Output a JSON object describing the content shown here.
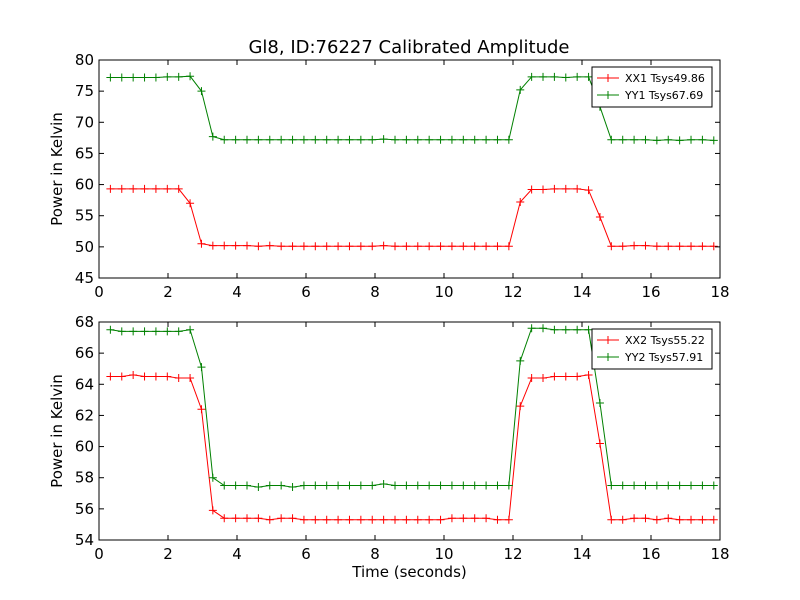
{
  "figure_title": "Gl8, ID:76227 Calibrated Amplitude",
  "chart_data": [
    {
      "type": "line",
      "title": "Gl8, ID:76227 Calibrated Amplitude",
      "xlabel": "",
      "ylabel": "Power in Kelvin",
      "xlim": [
        0,
        18
      ],
      "ylim": [
        45,
        80
      ],
      "xticks": [
        0,
        2,
        4,
        6,
        8,
        10,
        12,
        14,
        16,
        18
      ],
      "yticks": [
        45,
        50,
        55,
        60,
        65,
        70,
        75,
        80
      ],
      "grid": false,
      "legend_position": "top-right",
      "x": [
        0.33,
        0.66,
        0.99,
        1.32,
        1.65,
        1.98,
        2.31,
        2.64,
        2.97,
        3.3,
        3.63,
        3.96,
        4.29,
        4.62,
        4.95,
        5.28,
        5.61,
        5.94,
        6.27,
        6.6,
        6.93,
        7.26,
        7.59,
        7.92,
        8.25,
        8.58,
        8.91,
        9.24,
        9.57,
        9.9,
        10.23,
        10.56,
        10.89,
        11.22,
        11.55,
        11.88,
        12.21,
        12.54,
        12.87,
        13.2,
        13.53,
        13.86,
        14.19,
        14.52,
        14.85,
        15.18,
        15.51,
        15.84,
        16.17,
        16.5,
        16.83,
        17.16,
        17.49,
        17.82
      ],
      "series": [
        {
          "name": "XX1 Tsys49.86",
          "color": "#ff0000",
          "values": [
            59.3,
            59.3,
            59.3,
            59.3,
            59.3,
            59.3,
            59.3,
            57.0,
            50.5,
            50.2,
            50.2,
            50.2,
            50.2,
            50.1,
            50.2,
            50.1,
            50.1,
            50.1,
            50.1,
            50.1,
            50.1,
            50.1,
            50.1,
            50.1,
            50.2,
            50.1,
            50.1,
            50.1,
            50.1,
            50.1,
            50.1,
            50.1,
            50.1,
            50.1,
            50.1,
            50.1,
            57.2,
            59.2,
            59.2,
            59.3,
            59.3,
            59.3,
            59.1,
            54.8,
            50.1,
            50.1,
            50.2,
            50.2,
            50.1,
            50.1,
            50.1,
            50.1,
            50.1,
            50.1
          ]
        },
        {
          "name": "YY1 Tsys67.69",
          "color": "#008000",
          "values": [
            77.2,
            77.2,
            77.2,
            77.2,
            77.2,
            77.3,
            77.3,
            77.4,
            75.0,
            67.7,
            67.2,
            67.2,
            67.2,
            67.2,
            67.2,
            67.2,
            67.2,
            67.2,
            67.2,
            67.2,
            67.2,
            67.2,
            67.2,
            67.2,
            67.3,
            67.2,
            67.2,
            67.2,
            67.2,
            67.2,
            67.2,
            67.2,
            67.2,
            67.2,
            67.2,
            67.2,
            75.2,
            77.3,
            77.3,
            77.3,
            77.2,
            77.3,
            77.3,
            72.5,
            67.2,
            67.2,
            67.2,
            67.2,
            67.1,
            67.2,
            67.1,
            67.2,
            67.2,
            67.1
          ]
        }
      ]
    },
    {
      "type": "line",
      "title": "",
      "xlabel": "Time (seconds)",
      "ylabel": "Power in Kelvin",
      "xlim": [
        0,
        18
      ],
      "ylim": [
        54,
        68
      ],
      "xticks": [
        0,
        2,
        4,
        6,
        8,
        10,
        12,
        14,
        16,
        18
      ],
      "yticks": [
        54,
        56,
        58,
        60,
        62,
        64,
        66,
        68
      ],
      "grid": false,
      "legend_position": "top-right",
      "x": [
        0.33,
        0.66,
        0.99,
        1.32,
        1.65,
        1.98,
        2.31,
        2.64,
        2.97,
        3.3,
        3.63,
        3.96,
        4.29,
        4.62,
        4.95,
        5.28,
        5.61,
        5.94,
        6.27,
        6.6,
        6.93,
        7.26,
        7.59,
        7.92,
        8.25,
        8.58,
        8.91,
        9.24,
        9.57,
        9.9,
        10.23,
        10.56,
        10.89,
        11.22,
        11.55,
        11.88,
        12.21,
        12.54,
        12.87,
        13.2,
        13.53,
        13.86,
        14.19,
        14.52,
        14.85,
        15.18,
        15.51,
        15.84,
        16.17,
        16.5,
        16.83,
        17.16,
        17.49,
        17.82
      ],
      "series": [
        {
          "name": "XX2 Tsys55.22",
          "color": "#ff0000",
          "values": [
            64.5,
            64.5,
            64.6,
            64.5,
            64.5,
            64.5,
            64.4,
            64.4,
            62.4,
            55.9,
            55.4,
            55.4,
            55.4,
            55.4,
            55.3,
            55.4,
            55.4,
            55.3,
            55.3,
            55.3,
            55.3,
            55.3,
            55.3,
            55.3,
            55.3,
            55.3,
            55.3,
            55.3,
            55.3,
            55.3,
            55.4,
            55.4,
            55.4,
            55.4,
            55.3,
            55.3,
            62.6,
            64.4,
            64.4,
            64.5,
            64.5,
            64.5,
            64.6,
            60.2,
            55.3,
            55.3,
            55.4,
            55.4,
            55.3,
            55.4,
            55.3,
            55.3,
            55.3,
            55.3
          ]
        },
        {
          "name": "YY2 Tsys57.91",
          "color": "#008000",
          "values": [
            67.5,
            67.4,
            67.4,
            67.4,
            67.4,
            67.4,
            67.4,
            67.5,
            65.1,
            58.0,
            57.5,
            57.5,
            57.5,
            57.4,
            57.5,
            57.5,
            57.4,
            57.5,
            57.5,
            57.5,
            57.5,
            57.5,
            57.5,
            57.5,
            57.6,
            57.5,
            57.5,
            57.5,
            57.5,
            57.5,
            57.5,
            57.5,
            57.5,
            57.5,
            57.5,
            57.5,
            65.5,
            67.6,
            67.6,
            67.5,
            67.5,
            67.5,
            67.5,
            62.8,
            57.5,
            57.5,
            57.5,
            57.5,
            57.5,
            57.5,
            57.5,
            57.5,
            57.5,
            57.5
          ]
        }
      ]
    }
  ]
}
